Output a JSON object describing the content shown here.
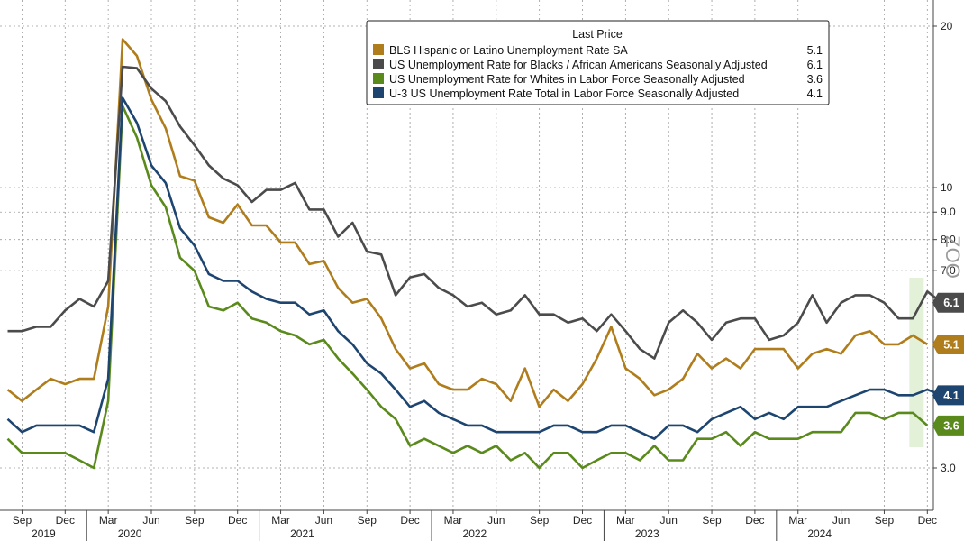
{
  "chart_data": {
    "type": "line",
    "title": "Last Price",
    "yscale": "log",
    "ylim": [
      2.6,
      22
    ],
    "ytick_labels": [
      "20",
      "10",
      "9.0",
      "8.0",
      "7.0",
      "3.0"
    ],
    "ytick_values": [
      20,
      10,
      9,
      8,
      7,
      3
    ],
    "watermark": "ZOO",
    "x_start": "2019-08",
    "x_tick_labels": [
      "Sep",
      "Dec",
      "Mar",
      "Jun",
      "Sep",
      "Dec",
      "Mar",
      "Jun",
      "Sep",
      "Dec",
      "Mar",
      "Jun",
      "Sep",
      "Dec",
      "Mar",
      "Jun",
      "Sep",
      "Dec",
      "Mar",
      "Jun",
      "Sep",
      "Dec"
    ],
    "x_tick_index": [
      1,
      4,
      7,
      10,
      13,
      16,
      19,
      22,
      25,
      28,
      31,
      34,
      37,
      40,
      43,
      46,
      49,
      52,
      55,
      58,
      61,
      64
    ],
    "year_labels": [
      "2019",
      "2020",
      "2021",
      "2022",
      "2023",
      "2024"
    ],
    "year_label_index": [
      2.5,
      8.5,
      20.5,
      32.5,
      44.5,
      56.5
    ],
    "year_boundaries": [
      5.5,
      17.5,
      29.5,
      41.5,
      53.5
    ],
    "highlight_range": [
      62.5,
      63.5
    ],
    "series": [
      {
        "name": "BLS Hispanic or Latino Unemployment Rate SA",
        "last": "5.1",
        "color": "#b07d1c",
        "values": [
          4.2,
          4.0,
          4.2,
          4.4,
          4.3,
          4.4,
          4.4,
          6.0,
          18.9,
          17.6,
          14.6,
          12.9,
          10.5,
          10.3,
          8.8,
          8.6,
          9.3,
          8.5,
          8.5,
          7.9,
          7.9,
          7.2,
          7.3,
          6.5,
          6.1,
          6.2,
          5.7,
          5.0,
          4.6,
          4.7,
          4.3,
          4.2,
          4.2,
          4.4,
          4.3,
          4.0,
          4.6,
          3.9,
          4.2,
          4.0,
          4.3,
          4.8,
          5.5,
          4.6,
          4.4,
          4.1,
          4.2,
          4.4,
          4.9,
          4.6,
          4.8,
          4.6,
          5.0,
          5.0,
          5.0,
          4.6,
          4.9,
          5.0,
          4.9,
          5.3,
          5.4,
          5.1,
          5.1,
          5.3,
          5.1
        ]
      },
      {
        "name": "US Unemployment Rate for Blacks / African Americans Seasonally Adjusted",
        "last": "6.1",
        "color": "#4b4b4b",
        "values": [
          5.4,
          5.4,
          5.5,
          5.5,
          5.9,
          6.2,
          6.0,
          6.7,
          16.8,
          16.7,
          15.3,
          14.5,
          13.0,
          12.0,
          11.0,
          10.4,
          10.1,
          9.4,
          9.9,
          9.9,
          10.2,
          9.1,
          9.1,
          8.1,
          8.6,
          7.6,
          7.5,
          6.3,
          6.8,
          6.9,
          6.5,
          6.3,
          6.0,
          6.1,
          5.8,
          5.9,
          6.3,
          5.8,
          5.8,
          5.6,
          5.7,
          5.4,
          5.8,
          5.4,
          5.0,
          4.8,
          5.6,
          5.9,
          5.6,
          5.2,
          5.6,
          5.7,
          5.7,
          5.2,
          5.3,
          5.6,
          6.3,
          5.6,
          6.1,
          6.3,
          6.3,
          6.1,
          5.7,
          5.7,
          6.4,
          6.1
        ]
      },
      {
        "name": "US Unemployment Rate for Whites in Labor Force Seasonally Adjusted",
        "last": "3.6",
        "color": "#5a8a1c",
        "values": [
          3.4,
          3.2,
          3.2,
          3.2,
          3.2,
          3.1,
          3.0,
          4.0,
          14.2,
          12.4,
          10.1,
          9.2,
          7.4,
          7.0,
          6.0,
          5.9,
          6.1,
          5.7,
          5.6,
          5.4,
          5.3,
          5.1,
          5.2,
          4.8,
          4.5,
          4.2,
          3.9,
          3.7,
          3.3,
          3.4,
          3.3,
          3.2,
          3.3,
          3.2,
          3.3,
          3.1,
          3.2,
          3.0,
          3.2,
          3.2,
          3.0,
          3.1,
          3.2,
          3.2,
          3.1,
          3.3,
          3.1,
          3.1,
          3.4,
          3.4,
          3.5,
          3.3,
          3.5,
          3.4,
          3.4,
          3.4,
          3.5,
          3.5,
          3.5,
          3.8,
          3.8,
          3.7,
          3.8,
          3.8,
          3.6
        ]
      },
      {
        "name": "U-3 US Unemployment Rate Total in Labor Force Seasonally Adjusted",
        "last": "4.1",
        "color": "#1d4570",
        "values": [
          3.7,
          3.5,
          3.6,
          3.6,
          3.6,
          3.6,
          3.5,
          4.4,
          14.7,
          13.2,
          11.0,
          10.2,
          8.4,
          7.8,
          6.9,
          6.7,
          6.7,
          6.4,
          6.2,
          6.1,
          6.1,
          5.8,
          5.9,
          5.4,
          5.1,
          4.7,
          4.5,
          4.2,
          3.9,
          4.0,
          3.8,
          3.7,
          3.6,
          3.6,
          3.5,
          3.5,
          3.5,
          3.5,
          3.6,
          3.6,
          3.5,
          3.5,
          3.6,
          3.6,
          3.5,
          3.4,
          3.6,
          3.6,
          3.5,
          3.7,
          3.8,
          3.9,
          3.7,
          3.8,
          3.7,
          3.9,
          3.9,
          3.9,
          4.0,
          4.1,
          4.2,
          4.2,
          4.1,
          4.1,
          4.2,
          4.1
        ]
      }
    ]
  }
}
